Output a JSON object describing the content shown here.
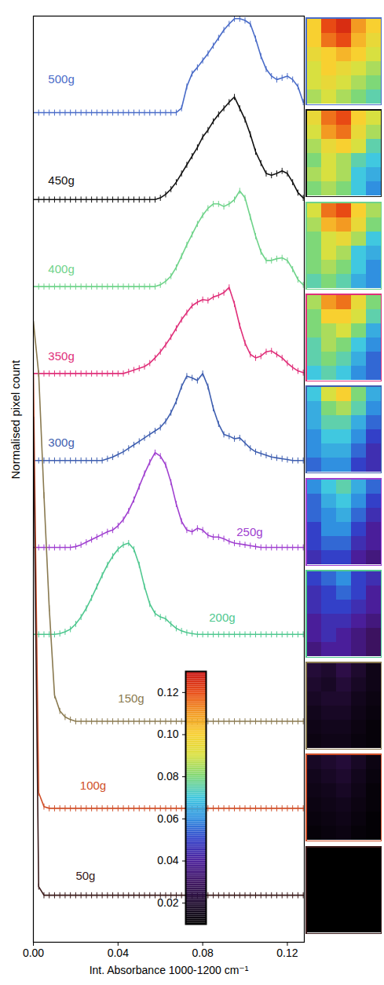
{
  "chart_data": {
    "type": "line",
    "xlabel": "Int. Absorbance 1000-1200 cm⁻¹",
    "ylabel": "Normalised pixel count",
    "x": [
      0,
      0.0025,
      0.005,
      0.0075,
      0.01,
      0.0125,
      0.015,
      0.0175,
      0.02,
      0.0225,
      0.025,
      0.0275,
      0.03,
      0.0325,
      0.035,
      0.0375,
      0.04,
      0.0425,
      0.045,
      0.0475,
      0.05,
      0.0525,
      0.055,
      0.0575,
      0.06,
      0.0625,
      0.065,
      0.0675,
      0.07,
      0.0725,
      0.075,
      0.0775,
      0.08,
      0.0825,
      0.085,
      0.0875,
      0.09,
      0.0925,
      0.095,
      0.0975,
      0.1,
      0.1025,
      0.105,
      0.1075,
      0.11,
      0.1125,
      0.115,
      0.1175,
      0.12,
      0.1225,
      0.125,
      0.1275
    ],
    "xlim": [
      0,
      0.128
    ],
    "xticks": [
      {
        "value": 0,
        "label": "0.00"
      },
      0.04,
      0.08,
      0.12
    ],
    "tick_labels": "x",
    "marker": "tick",
    "series": [
      {
        "name": "500g",
        "color": "#4a6cc8",
        "values": [
          0,
          0,
          0,
          0,
          0,
          0,
          0,
          0,
          0,
          0,
          0,
          0,
          0,
          0,
          0,
          0,
          0,
          0,
          0,
          0,
          0,
          0,
          0,
          0,
          0,
          0,
          0,
          0,
          0.05,
          0.3,
          0.45,
          0.52,
          0.6,
          0.68,
          0.77,
          0.86,
          0.95,
          1.02,
          1.08,
          1.08,
          1.06,
          1.02,
          0.85,
          0.65,
          0.5,
          0.42,
          0.38,
          0.4,
          0.42,
          0.38,
          0.3,
          0.12
        ],
        "cells": [
          [
            0.1,
            0.12,
            0.125,
            0.11,
            0.1
          ],
          [
            0.1,
            0.115,
            0.12,
            0.105,
            0.095
          ],
          [
            0.095,
            0.1,
            0.105,
            0.1,
            0.09
          ],
          [
            0.09,
            0.1,
            0.095,
            0.09,
            0.085
          ],
          [
            0.09,
            0.095,
            0.09,
            0.085,
            0.08
          ],
          [
            0.085,
            0.09,
            0.085,
            0.08,
            0.075
          ]
        ]
      },
      {
        "name": "450g",
        "color": "#111111",
        "values": [
          0,
          0,
          0,
          0,
          0,
          0,
          0,
          0,
          0,
          0,
          0,
          0,
          0,
          0,
          0,
          0,
          0,
          0,
          0,
          0,
          0,
          0,
          0,
          0,
          0.02,
          0.06,
          0.12,
          0.2,
          0.3,
          0.4,
          0.5,
          0.6,
          0.72,
          0.8,
          0.9,
          0.98,
          1.05,
          1.12,
          1.18,
          1.05,
          0.92,
          0.75,
          0.55,
          0.42,
          0.3,
          0.28,
          0.3,
          0.33,
          0.3,
          0.2,
          0.08,
          0.02
        ],
        "cells": [
          [
            0.095,
            0.115,
            0.12,
            0.1,
            0.09
          ],
          [
            0.09,
            0.11,
            0.115,
            0.095,
            0.085
          ],
          [
            0.085,
            0.095,
            0.1,
            0.09,
            0.075
          ],
          [
            0.08,
            0.09,
            0.085,
            0.075,
            0.07
          ],
          [
            0.085,
            0.09,
            0.085,
            0.07,
            0.065
          ],
          [
            0.08,
            0.085,
            0.08,
            0.07,
            0.06
          ]
        ]
      },
      {
        "name": "400g",
        "color": "#6fd38a",
        "values": [
          0,
          0,
          0,
          0,
          0,
          0,
          0,
          0,
          0,
          0,
          0,
          0,
          0,
          0,
          0,
          0,
          0,
          0,
          0,
          0,
          0,
          0,
          0,
          0,
          0.02,
          0.06,
          0.12,
          0.22,
          0.35,
          0.48,
          0.6,
          0.72,
          0.82,
          0.9,
          0.95,
          0.95,
          0.92,
          0.95,
          1.0,
          1.1,
          1.02,
          0.8,
          0.58,
          0.4,
          0.3,
          0.3,
          0.32,
          0.33,
          0.3,
          0.2,
          0.08,
          0.02
        ],
        "cells": [
          [
            0.09,
            0.115,
            0.12,
            0.1,
            0.085
          ],
          [
            0.085,
            0.105,
            0.11,
            0.095,
            0.08
          ],
          [
            0.08,
            0.09,
            0.095,
            0.085,
            0.07
          ],
          [
            0.08,
            0.09,
            0.085,
            0.07,
            0.065
          ],
          [
            0.08,
            0.085,
            0.08,
            0.07,
            0.06
          ],
          [
            0.075,
            0.08,
            0.075,
            0.065,
            0.06
          ]
        ]
      },
      {
        "name": "350g",
        "color": "#e0307a",
        "values": [
          0,
          0,
          0,
          0,
          0,
          0,
          0,
          0,
          0,
          0,
          0,
          0,
          0,
          0,
          0,
          0,
          0,
          0,
          0.02,
          0.04,
          0.06,
          0.08,
          0.12,
          0.18,
          0.25,
          0.33,
          0.42,
          0.52,
          0.62,
          0.7,
          0.78,
          0.82,
          0.85,
          0.84,
          0.88,
          0.9,
          0.93,
          0.99,
          0.8,
          0.55,
          0.35,
          0.22,
          0.18,
          0.2,
          0.25,
          0.26,
          0.22,
          0.18,
          0.12,
          0.07,
          0.03,
          0.01
        ],
        "cells": [
          [
            0.085,
            0.11,
            0.115,
            0.095,
            0.08
          ],
          [
            0.08,
            0.1,
            0.1,
            0.09,
            0.075
          ],
          [
            0.08,
            0.085,
            0.09,
            0.08,
            0.065
          ],
          [
            0.075,
            0.085,
            0.08,
            0.07,
            0.06
          ],
          [
            0.075,
            0.08,
            0.075,
            0.065,
            0.055
          ],
          [
            0.07,
            0.075,
            0.07,
            0.06,
            0.055
          ]
        ]
      },
      {
        "name": "300g",
        "color": "#3f5fb0",
        "values": [
          0,
          0,
          0,
          0,
          0,
          0,
          0,
          0,
          0,
          0,
          0,
          0,
          0,
          0,
          0.02,
          0.04,
          0.07,
          0.1,
          0.14,
          0.18,
          0.22,
          0.26,
          0.3,
          0.34,
          0.38,
          0.45,
          0.55,
          0.68,
          0.85,
          0.97,
          0.95,
          0.92,
          1.0,
          0.85,
          0.6,
          0.42,
          0.3,
          0.28,
          0.25,
          0.26,
          0.2,
          0.14,
          0.1,
          0.08,
          0.06,
          0.04,
          0.03,
          0.02,
          0.01,
          0,
          0,
          0
        ],
        "cells": [
          [
            0.07,
            0.09,
            0.1,
            0.08,
            0.065
          ],
          [
            0.065,
            0.08,
            0.085,
            0.075,
            0.06
          ],
          [
            0.065,
            0.075,
            0.075,
            0.065,
            0.055
          ],
          [
            0.06,
            0.07,
            0.07,
            0.06,
            0.05
          ],
          [
            0.06,
            0.065,
            0.065,
            0.055,
            0.045
          ],
          [
            0.055,
            0.06,
            0.06,
            0.05,
            0.045
          ]
        ]
      },
      {
        "name": "250g",
        "color": "#a040d0",
        "values": [
          0,
          0,
          0,
          0,
          0,
          0,
          0,
          0,
          0.01,
          0.03,
          0.06,
          0.09,
          0.12,
          0.15,
          0.18,
          0.2,
          0.25,
          0.32,
          0.42,
          0.55,
          0.7,
          0.85,
          0.98,
          1.09,
          1.05,
          0.95,
          0.75,
          0.5,
          0.3,
          0.2,
          0.18,
          0.22,
          0.2,
          0.14,
          0.12,
          0.12,
          0.1,
          0.07,
          0.05,
          0.04,
          0.03,
          0.02,
          0.01,
          0,
          0,
          0,
          0,
          0,
          0,
          0,
          0,
          0
        ],
        "cells": [
          [
            0.06,
            0.07,
            0.075,
            0.065,
            0.055
          ],
          [
            0.055,
            0.065,
            0.07,
            0.06,
            0.05
          ],
          [
            0.055,
            0.06,
            0.065,
            0.055,
            0.045
          ],
          [
            0.05,
            0.06,
            0.06,
            0.05,
            0.04
          ],
          [
            0.05,
            0.055,
            0.055,
            0.045,
            0.04
          ],
          [
            0.045,
            0.05,
            0.05,
            0.04,
            0.035
          ]
        ]
      },
      {
        "name": "200g",
        "color": "#50c890",
        "values": [
          0,
          0,
          0,
          0,
          0,
          0.01,
          0.03,
          0.06,
          0.12,
          0.2,
          0.3,
          0.42,
          0.55,
          0.68,
          0.8,
          0.9,
          0.98,
          1.03,
          1.05,
          0.98,
          0.8,
          0.55,
          0.35,
          0.24,
          0.2,
          0.18,
          0.12,
          0.07,
          0.04,
          0.02,
          0.01,
          0,
          0,
          0,
          0,
          0,
          0,
          0,
          0,
          0,
          0,
          0,
          0,
          0,
          0,
          0,
          0,
          0,
          0,
          0,
          0,
          0
        ],
        "cells": [
          [
            0.05,
            0.055,
            0.06,
            0.05,
            0.045
          ],
          [
            0.045,
            0.05,
            0.055,
            0.05,
            0.04
          ],
          [
            0.045,
            0.05,
            0.05,
            0.045,
            0.04
          ],
          [
            0.04,
            0.045,
            0.045,
            0.04,
            0.035
          ],
          [
            0.04,
            0.045,
            0.04,
            0.035,
            0.03
          ],
          [
            0.035,
            0.04,
            0.04,
            0.035,
            0.03
          ]
        ]
      },
      {
        "name": "150g",
        "color": "#8a7a50",
        "values": [
          4.6,
          4.0,
          2.6,
          1.3,
          0.3,
          0.12,
          0.05,
          0.02,
          0,
          0,
          0,
          0,
          0,
          0,
          0,
          0,
          0,
          0,
          0,
          0,
          0,
          0,
          0,
          0,
          0,
          0,
          0,
          0,
          0,
          0,
          0,
          0,
          0,
          0,
          0,
          0,
          0,
          0,
          0,
          0,
          0,
          0,
          0,
          0,
          0,
          0,
          0,
          0,
          0,
          0,
          0,
          0
        ],
        "cells": [
          [
            0.022,
            0.02,
            0.025,
            0.02,
            0.015
          ],
          [
            0.02,
            0.018,
            0.022,
            0.018,
            0.015
          ],
          [
            0.018,
            0.02,
            0.02,
            0.016,
            0.014
          ],
          [
            0.016,
            0.018,
            0.018,
            0.015,
            0.013
          ],
          [
            0.015,
            0.016,
            0.016,
            0.014,
            0.012
          ],
          [
            0.014,
            0.015,
            0.015,
            0.013,
            0.012
          ]
        ]
      },
      {
        "name": "100g",
        "color": "#d0502a",
        "values": [
          5.0,
          0.18,
          0.02,
          0,
          0,
          0,
          0,
          0,
          0,
          0,
          0,
          0,
          0,
          0,
          0,
          0,
          0,
          0,
          0,
          0,
          0,
          0,
          0,
          0,
          0,
          0,
          0,
          0,
          0,
          0,
          0,
          0,
          0,
          0,
          0,
          0,
          0,
          0,
          0,
          0,
          0,
          0,
          0,
          0,
          0,
          0,
          0,
          0,
          0,
          0,
          0,
          0
        ],
        "cells": [
          [
            0.018,
            0.02,
            0.022,
            0.018,
            0.014
          ],
          [
            0.016,
            0.018,
            0.02,
            0.016,
            0.013
          ],
          [
            0.015,
            0.016,
            0.018,
            0.015,
            0.012
          ],
          [
            0.014,
            0.015,
            0.016,
            0.014,
            0.012
          ],
          [
            0.013,
            0.014,
            0.015,
            0.013,
            0.011
          ],
          [
            0.012,
            0.013,
            0.014,
            0.012,
            0.011
          ]
        ]
      },
      {
        "name": "50g",
        "color": "#3a1a1a",
        "values": [
          5.5,
          0.1,
          0,
          0,
          0,
          0,
          0,
          0,
          0,
          0,
          0,
          0,
          0,
          0,
          0,
          0,
          0,
          0,
          0,
          0,
          0,
          0,
          0,
          0,
          0,
          0,
          0,
          0,
          0,
          0,
          0,
          0,
          0,
          0,
          0,
          0,
          0,
          0,
          0,
          0,
          0,
          0,
          0,
          0,
          0,
          0,
          0,
          0,
          0,
          0,
          0,
          0
        ],
        "cells": [
          [
            0.008,
            0.009,
            0.01,
            0.008,
            0.007
          ],
          [
            0.007,
            0.008,
            0.009,
            0.008,
            0.007
          ],
          [
            0.007,
            0.008,
            0.008,
            0.007,
            0.006
          ],
          [
            0.006,
            0.007,
            0.008,
            0.007,
            0.006
          ],
          [
            0.006,
            0.007,
            0.007,
            0.006,
            0.005
          ],
          [
            0.005,
            0.006,
            0.006,
            0.005,
            0.005
          ]
        ]
      }
    ],
    "colorbar": {
      "range": [
        0.01,
        0.13
      ],
      "ticks": [
        0.02,
        0.04,
        0.06,
        0.08,
        {
          "value": 0.1,
          "label": "0.10"
        },
        0.12
      ]
    }
  }
}
